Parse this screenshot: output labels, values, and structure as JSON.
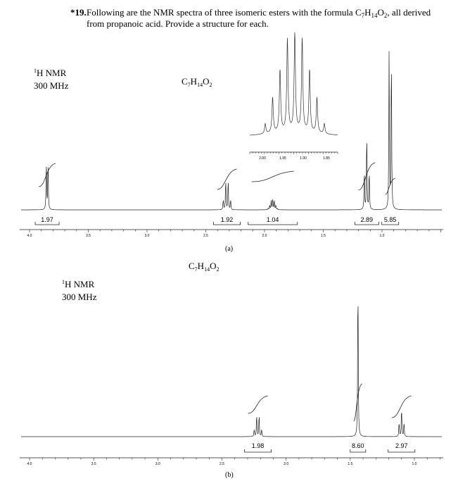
{
  "question": {
    "number": "*19.",
    "line1": "Following are the NMR spectra of three isomeric esters with the formula C7H14O2, all derived",
    "line2": "from propanoic acid. Provide a structure for each."
  },
  "chart_data": [
    {
      "type": "line",
      "panel": "(a)",
      "nucleus_label": "1H NMR",
      "field_label": "300 MHz",
      "formula": "C7H14O2",
      "x_axis": {
        "unit": "ppm",
        "reversed": true,
        "range": [
          4.0,
          0.7
        ],
        "tick_labels": [
          "4.0",
          "3.5",
          "3.0",
          "2.5",
          "2.0",
          "1.5",
          "1.0"
        ]
      },
      "peaks": [
        {
          "shift": 3.85,
          "multiplicity": "doublet",
          "integral": "1.97"
        },
        {
          "shift": 2.32,
          "multiplicity": "quartet",
          "integral": "1.92"
        },
        {
          "shift": 1.93,
          "multiplicity": "multiplet",
          "integral": "1.04"
        },
        {
          "shift": 1.13,
          "multiplicity": "triplet",
          "integral": "2.89"
        },
        {
          "shift": 0.93,
          "multiplicity": "doublet",
          "integral": "5.85"
        }
      ],
      "inset": {
        "range": [
          2.0,
          1.85
        ],
        "tick_labels": [
          "2.00",
          "1.95",
          "1.90",
          "1.85"
        ]
      }
    },
    {
      "type": "line",
      "panel": "(b)",
      "nucleus_label": "1H NMR",
      "field_label": "300 MHz",
      "formula": "C7H14O2",
      "x_axis": {
        "unit": "ppm",
        "reversed": true,
        "range": [
          4.0,
          0.7
        ],
        "tick_labels": [
          "4.0",
          "3.5",
          "3.0",
          "2.5",
          "2.0",
          "1.5",
          "1.0"
        ]
      },
      "peaks": [
        {
          "shift": 2.22,
          "multiplicity": "quartet",
          "integral": "1.98"
        },
        {
          "shift": 1.44,
          "multiplicity": "singlet",
          "integral": "8.60"
        },
        {
          "shift": 1.1,
          "multiplicity": "triplet",
          "integral": "2.97"
        }
      ]
    }
  ]
}
